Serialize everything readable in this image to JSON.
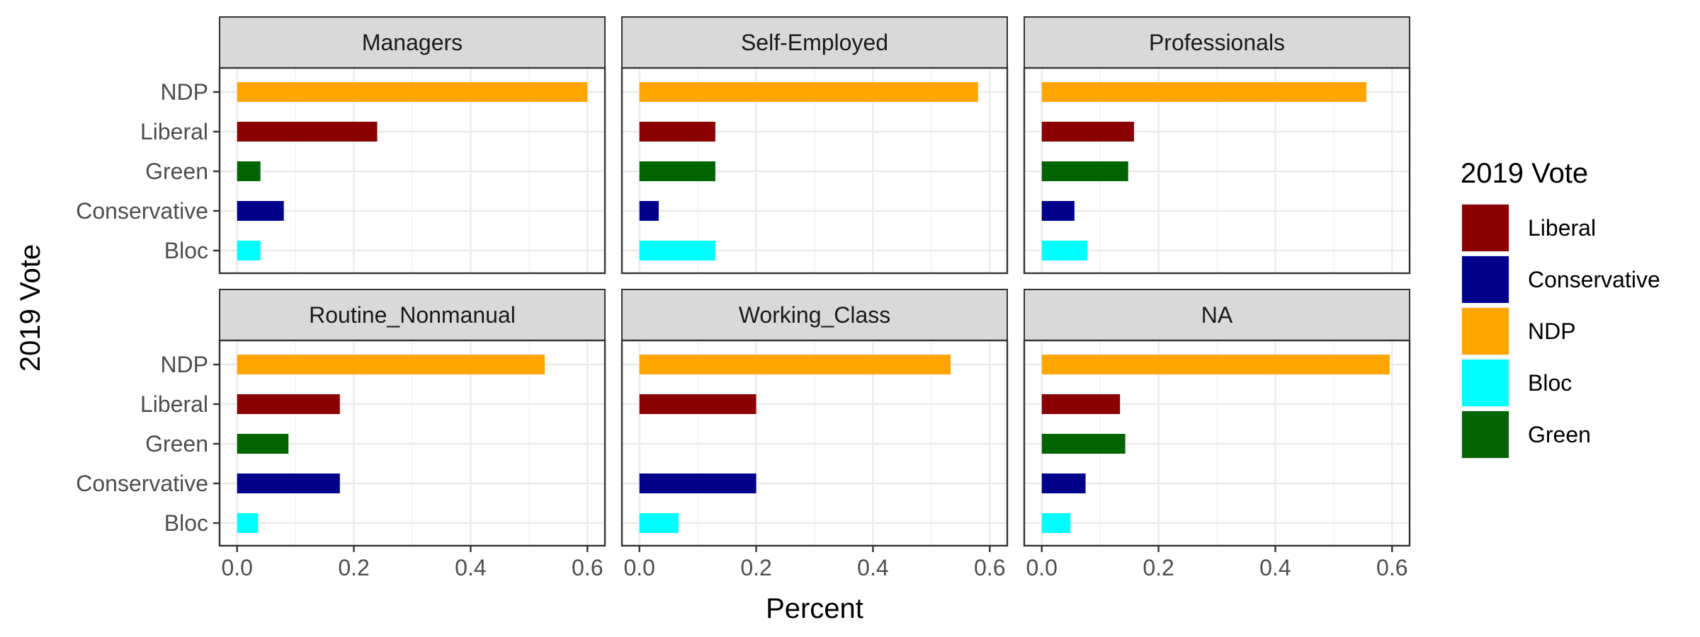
{
  "chart_data": {
    "type": "bar",
    "orientation": "horizontal",
    "facet_variable": "occupation",
    "facets": [
      {
        "name": "Managers",
        "values": {
          "NDP": 0.6,
          "Liberal": 0.24,
          "Green": 0.04,
          "Conservative": 0.08,
          "Bloc": 0.04
        }
      },
      {
        "name": "Self-Employed",
        "values": {
          "NDP": 0.58,
          "Liberal": 0.13,
          "Green": 0.13,
          "Conservative": 0.033,
          "Bloc": 0.13
        }
      },
      {
        "name": "Professionals",
        "values": {
          "NDP": 0.556,
          "Liberal": 0.158,
          "Green": 0.148,
          "Conservative": 0.056,
          "Bloc": 0.078
        }
      },
      {
        "name": "Routine_Nonmanual",
        "values": {
          "NDP": 0.527,
          "Liberal": 0.176,
          "Green": 0.088,
          "Conservative": 0.176,
          "Bloc": 0.036
        }
      },
      {
        "name": "Working_Class",
        "values": {
          "NDP": 0.533,
          "Liberal": 0.2,
          "Green": 0.0,
          "Conservative": 0.2,
          "Bloc": 0.067
        }
      },
      {
        "name": "NA",
        "values": {
          "NDP": 0.596,
          "Liberal": 0.134,
          "Green": 0.143,
          "Conservative": 0.075,
          "Bloc": 0.049
        }
      }
    ],
    "categories": [
      "NDP",
      "Liberal",
      "Green",
      "Conservative",
      "Bloc"
    ],
    "xlabel": "Percent",
    "ylabel": "2019 Vote",
    "xlim": [
      -0.03,
      0.63
    ],
    "xticks": [
      0.0,
      0.2,
      0.4,
      0.6
    ],
    "xtick_labels": [
      "0.0",
      "0.2",
      "0.4",
      "0.6"
    ],
    "grid": true,
    "legend": {
      "title": "2019 Vote",
      "position": "right",
      "entries": [
        "Liberal",
        "Conservative",
        "NDP",
        "Bloc",
        "Green"
      ]
    },
    "colors": {
      "Liberal": "#8B0000",
      "Conservative": "#00008B",
      "NDP": "#FFA500",
      "Bloc": "#00FFFF",
      "Green": "#006400"
    }
  }
}
